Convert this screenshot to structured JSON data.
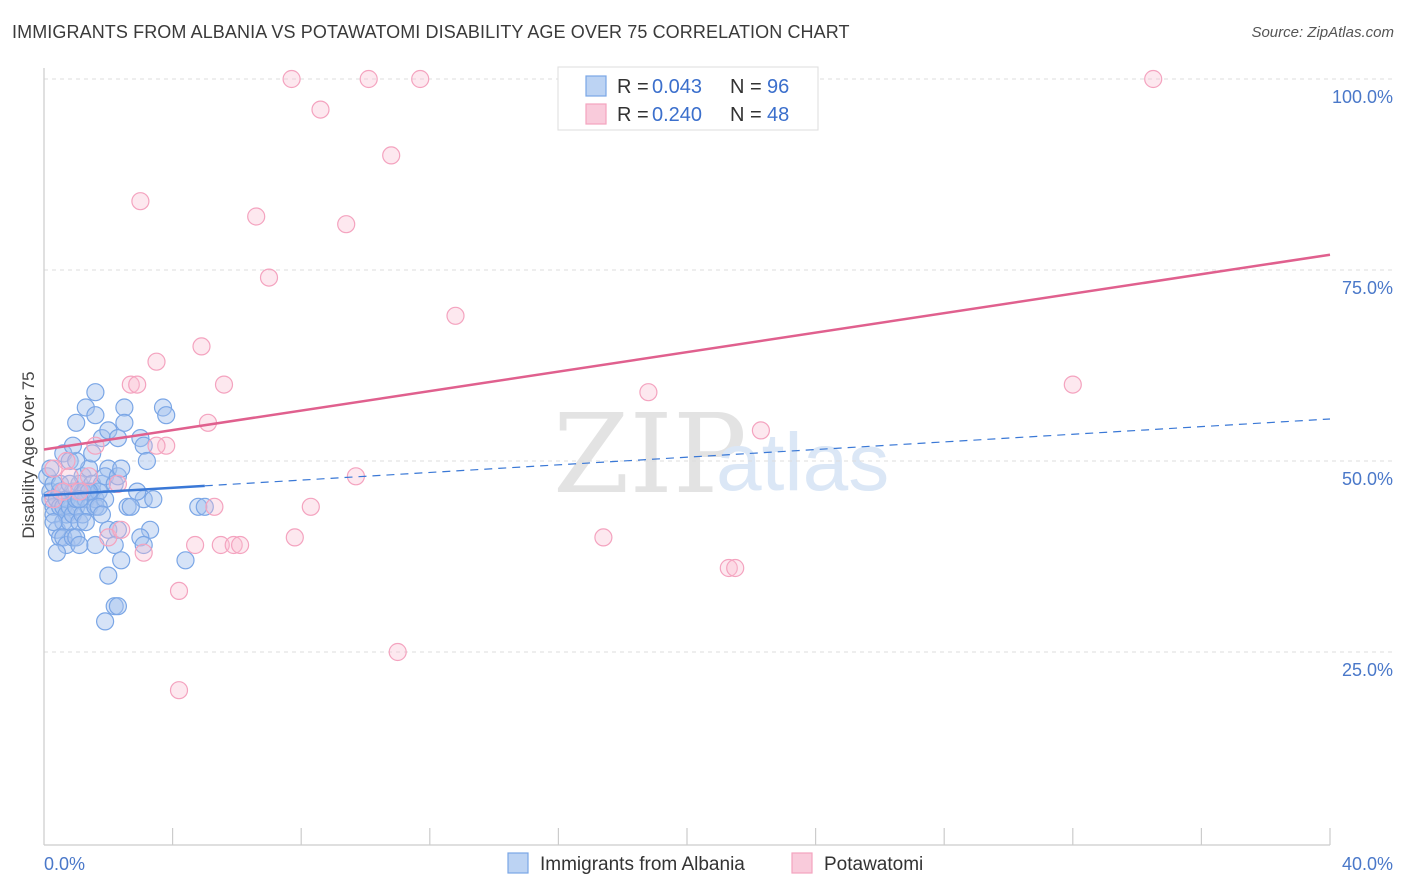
{
  "title": "IMMIGRANTS FROM ALBANIA VS POTAWATOMI DISABILITY AGE OVER 75 CORRELATION CHART",
  "source": "Source: ZipAtlas.com",
  "watermark": {
    "zip": "ZIP",
    "atlas": "atlas"
  },
  "chart_data": {
    "type": "scatter",
    "title": "IMMIGRANTS FROM ALBANIA VS POTAWATOMI DISABILITY AGE OVER 75 CORRELATION CHART",
    "xlabel": "",
    "ylabel": "Disability Age Over 75",
    "xlim": [
      0,
      40
    ],
    "ylim": [
      0,
      105
    ],
    "x_tick_labels": [
      "0.0%",
      "40.0%"
    ],
    "y_ticks": [
      25,
      50,
      75,
      100
    ],
    "y_tick_labels": [
      "25.0%",
      "50.0%",
      "75.0%",
      "100.0%"
    ],
    "grid": true,
    "legend_position": "top-center",
    "series": [
      {
        "name": "Immigrants from Albania",
        "color": "#7aa6e6",
        "line_color": "#3a78d6",
        "R": "0.043",
        "N": "96",
        "trend": {
          "x0": 0,
          "y0": 45.5,
          "x1": 40,
          "y1": 55.5,
          "solid_until": 5.0
        },
        "points": [
          [
            0.1,
            48
          ],
          [
            0.2,
            46
          ],
          [
            0.2,
            45
          ],
          [
            0.3,
            44
          ],
          [
            0.3,
            47
          ],
          [
            0.3,
            43
          ],
          [
            0.4,
            41
          ],
          [
            0.4,
            45
          ],
          [
            0.5,
            44
          ],
          [
            0.5,
            46
          ],
          [
            0.6,
            42
          ],
          [
            0.6,
            44
          ],
          [
            0.7,
            43
          ],
          [
            0.7,
            45
          ],
          [
            0.8,
            44
          ],
          [
            0.8,
            42
          ],
          [
            0.9,
            43
          ],
          [
            0.9,
            46
          ],
          [
            1.0,
            44
          ],
          [
            1.0,
            45
          ],
          [
            1.1,
            42
          ],
          [
            1.1,
            47
          ],
          [
            1.2,
            43
          ],
          [
            1.2,
            48
          ],
          [
            1.3,
            46
          ],
          [
            1.3,
            45
          ],
          [
            1.4,
            44
          ],
          [
            1.4,
            49
          ],
          [
            1.5,
            46
          ],
          [
            1.5,
            47
          ],
          [
            1.6,
            45
          ],
          [
            1.6,
            44
          ],
          [
            1.7,
            46
          ],
          [
            1.8,
            47
          ],
          [
            1.9,
            45
          ],
          [
            2.0,
            49
          ],
          [
            0.5,
            40
          ],
          [
            0.6,
            40
          ],
          [
            0.7,
            39
          ],
          [
            0.9,
            40
          ],
          [
            1.0,
            40
          ],
          [
            1.1,
            39
          ],
          [
            1.3,
            42
          ],
          [
            1.0,
            55
          ],
          [
            1.3,
            57
          ],
          [
            1.6,
            56
          ],
          [
            1.6,
            59
          ],
          [
            2.5,
            57
          ],
          [
            3.7,
            57
          ],
          [
            3.8,
            56
          ],
          [
            1.8,
            53
          ],
          [
            2.0,
            54
          ],
          [
            2.3,
            53
          ],
          [
            2.5,
            55
          ],
          [
            3.0,
            53
          ],
          [
            3.1,
            52
          ],
          [
            0.6,
            51
          ],
          [
            0.8,
            50
          ],
          [
            1.0,
            50
          ],
          [
            1.5,
            51
          ],
          [
            1.9,
            48
          ],
          [
            2.2,
            47
          ],
          [
            2.3,
            48
          ],
          [
            2.4,
            49
          ],
          [
            3.2,
            50
          ],
          [
            3.1,
            45
          ],
          [
            3.4,
            45
          ],
          [
            3.3,
            41
          ],
          [
            2.0,
            41
          ],
          [
            2.3,
            41
          ],
          [
            2.2,
            39
          ],
          [
            3.0,
            40
          ],
          [
            3.1,
            39
          ],
          [
            2.4,
            37
          ],
          [
            4.4,
            37
          ],
          [
            2.0,
            35
          ],
          [
            2.2,
            31
          ],
          [
            2.3,
            31
          ],
          [
            1.9,
            29
          ],
          [
            1.6,
            39
          ],
          [
            4.8,
            44
          ],
          [
            5.0,
            44
          ],
          [
            0.4,
            38
          ],
          [
            0.2,
            49
          ],
          [
            0.9,
            52
          ],
          [
            1.2,
            46
          ],
          [
            1.4,
            46
          ],
          [
            1.7,
            44
          ],
          [
            2.6,
            44
          ],
          [
            2.7,
            44
          ],
          [
            0.3,
            42
          ],
          [
            0.5,
            47
          ],
          [
            0.8,
            47
          ],
          [
            1.1,
            45
          ],
          [
            1.8,
            43
          ],
          [
            2.9,
            46
          ]
        ]
      },
      {
        "name": "Potawatomi",
        "color": "#f4a3bf",
        "line_color": "#e0608e",
        "R": "0.240",
        "N": "48",
        "trend": {
          "x0": 0,
          "y0": 51.5,
          "x1": 40,
          "y1": 77.0
        },
        "points": [
          [
            7.7,
            100
          ],
          [
            10.1,
            100
          ],
          [
            11.7,
            100
          ],
          [
            34.5,
            100
          ],
          [
            8.6,
            96
          ],
          [
            10.8,
            90
          ],
          [
            3.0,
            84
          ],
          [
            6.6,
            82
          ],
          [
            9.4,
            81
          ],
          [
            7.0,
            74
          ],
          [
            12.8,
            69
          ],
          [
            4.9,
            65
          ],
          [
            3.5,
            63
          ],
          [
            5.6,
            60
          ],
          [
            2.7,
            60
          ],
          [
            2.9,
            60
          ],
          [
            32.0,
            60
          ],
          [
            18.8,
            59
          ],
          [
            5.1,
            55
          ],
          [
            22.3,
            54
          ],
          [
            3.8,
            52
          ],
          [
            3.5,
            52
          ],
          [
            1.6,
            52
          ],
          [
            0.7,
            50
          ],
          [
            0.3,
            49
          ],
          [
            1.4,
            48
          ],
          [
            0.8,
            48
          ],
          [
            2.3,
            47
          ],
          [
            0.6,
            46
          ],
          [
            1.1,
            46
          ],
          [
            0.3,
            45
          ],
          [
            9.7,
            48
          ],
          [
            8.3,
            44
          ],
          [
            5.3,
            44
          ],
          [
            17.4,
            40
          ],
          [
            7.8,
            40
          ],
          [
            4.7,
            39
          ],
          [
            5.5,
            39
          ],
          [
            5.9,
            39
          ],
          [
            6.1,
            39
          ],
          [
            3.1,
            38
          ],
          [
            2.0,
            40
          ],
          [
            21.3,
            36
          ],
          [
            21.5,
            36
          ],
          [
            4.2,
            33
          ],
          [
            11.0,
            25
          ],
          [
            4.2,
            20
          ],
          [
            2.4,
            41
          ]
        ]
      }
    ]
  },
  "legend_top": [
    {
      "r_label": "R = ",
      "r_value": "0.043",
      "n_label": "N = ",
      "n_value": "96"
    },
    {
      "r_label": "R = ",
      "r_value": "0.240",
      "n_label": "N = ",
      "n_value": "48"
    }
  ],
  "legend_bottom": [
    "Immigrants from Albania",
    "Potawatomi"
  ]
}
